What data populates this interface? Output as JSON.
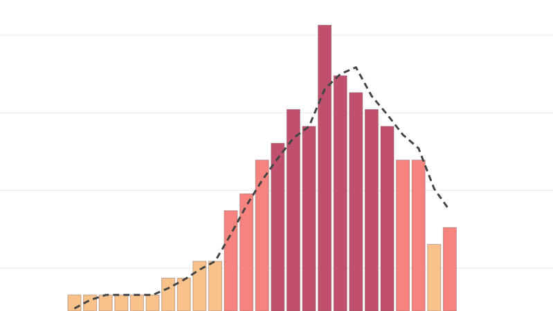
{
  "chart_data": {
    "type": "bar",
    "title": "",
    "xlabel": "",
    "ylabel": "",
    "ylim": [
      0,
      20.5
    ],
    "grid": true,
    "legend": "none",
    "values": [
      3,
      3,
      3,
      3,
      3,
      3,
      4,
      4,
      5,
      5,
      8,
      9,
      11,
      12,
      14,
      13,
      19,
      16,
      15,
      14,
      13,
      11,
      11,
      6,
      7
    ],
    "line": {
      "style": "dashed",
      "color": "#444444",
      "values": [
        2.2,
        2.7,
        3.0,
        3.0,
        3.0,
        3.0,
        3.4,
        3.9,
        4.5,
        5.0,
        6.6,
        8.3,
        9.8,
        11.1,
        12.3,
        13.0,
        15.2,
        16.1,
        16.5,
        14.8,
        13.7,
        12.5,
        11.7,
        9.3,
        8.0
      ]
    },
    "colors": {
      "low": "#f8c28a",
      "mid": "#f7837f",
      "high": "#c0506e",
      "grid": "#e8e8e8"
    },
    "gridlines": [
      4.6,
      9.2,
      13.8,
      18.4
    ]
  }
}
